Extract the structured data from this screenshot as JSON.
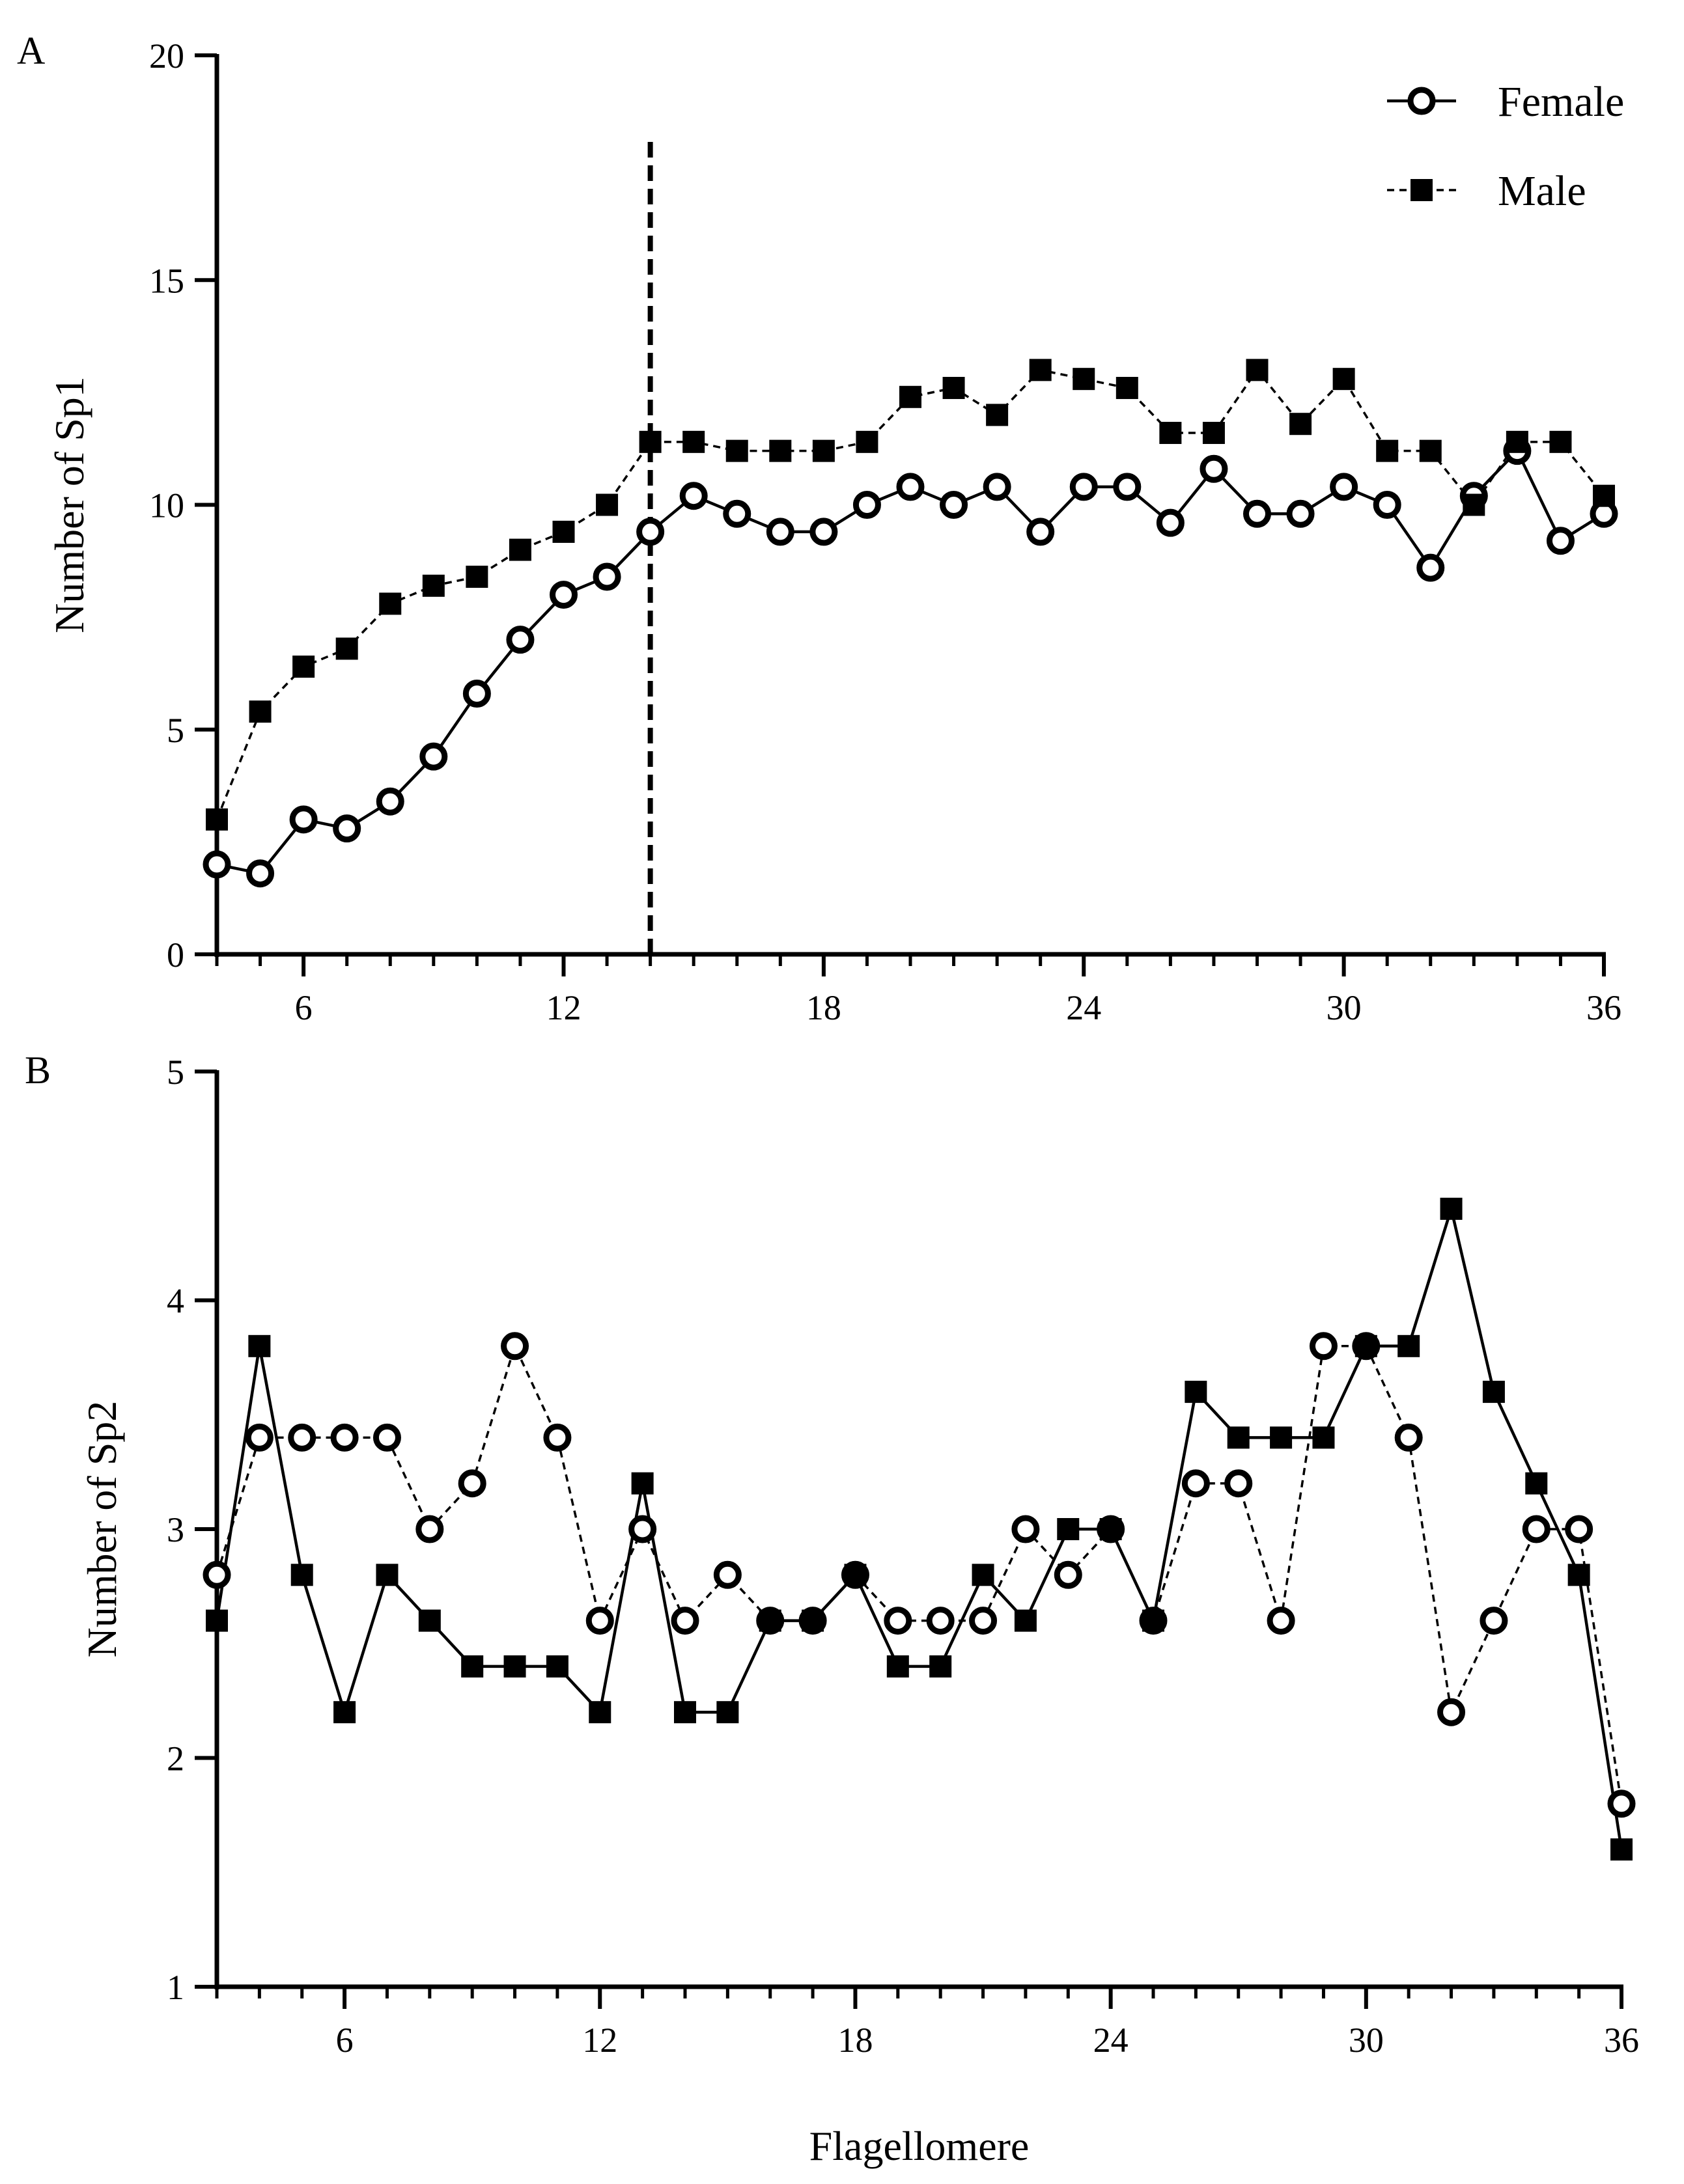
{
  "chart_data": [
    {
      "panel": "A",
      "type": "line",
      "xlabel": "",
      "ylabel": "Number of Sp1",
      "xlim": [
        4,
        36
      ],
      "ylim": [
        0,
        20
      ],
      "xticks": [
        6,
        12,
        18,
        24,
        30,
        36
      ],
      "yticks": [
        0,
        5,
        10,
        15,
        20
      ],
      "xtick_labels": [
        "6",
        "12",
        "18",
        "24",
        "30",
        "36"
      ],
      "ytick_labels": [
        "0",
        "5",
        "10",
        "15",
        "20"
      ],
      "reference_line": {
        "orientation": "vertical",
        "x": 14,
        "style": "dashed",
        "from_y": 0,
        "to_y": 18.2
      },
      "legend": {
        "position": "top-right",
        "entries": [
          "Female",
          "Male"
        ]
      },
      "series": [
        {
          "name": "Female",
          "marker": "open-circle",
          "line_style": "solid",
          "x": [
            4,
            5,
            6,
            7,
            8,
            9,
            10,
            11,
            12,
            13,
            14,
            15,
            16,
            17,
            18,
            19,
            20,
            21,
            22,
            23,
            24,
            25,
            26,
            27,
            28,
            29,
            30,
            31,
            32,
            33,
            34,
            35,
            36
          ],
          "values": [
            2.0,
            1.8,
            3.0,
            2.8,
            3.4,
            4.4,
            5.8,
            7.0,
            8.0,
            8.4,
            9.4,
            10.2,
            9.8,
            9.4,
            9.4,
            10.0,
            10.4,
            10.0,
            10.4,
            9.4,
            10.4,
            10.4,
            9.6,
            10.8,
            9.8,
            9.8,
            10.4,
            10.0,
            8.6,
            10.2,
            11.2,
            9.2,
            9.8
          ]
        },
        {
          "name": "Male",
          "marker": "filled-square",
          "line_style": "dashed",
          "x": [
            4,
            5,
            6,
            7,
            8,
            9,
            10,
            11,
            12,
            13,
            14,
            15,
            16,
            17,
            18,
            19,
            20,
            21,
            22,
            23,
            24,
            25,
            26,
            27,
            28,
            29,
            30,
            31,
            32,
            33,
            34,
            35,
            36
          ],
          "values": [
            3.0,
            5.4,
            6.4,
            6.8,
            7.8,
            8.2,
            8.4,
            9.0,
            9.4,
            10.0,
            11.4,
            11.4,
            11.2,
            11.2,
            11.2,
            11.4,
            12.4,
            12.6,
            12.0,
            13.0,
            12.8,
            12.6,
            11.6,
            11.6,
            13.0,
            11.8,
            12.8,
            11.2,
            11.2,
            10.0,
            11.4,
            11.4,
            10.2
          ]
        }
      ]
    },
    {
      "panel": "B",
      "type": "line",
      "xlabel": "Flagellomere",
      "ylabel": "Number of Sp2",
      "xlim": [
        3,
        36
      ],
      "ylim": [
        1,
        5
      ],
      "xticks": [
        6,
        12,
        18,
        24,
        30,
        36
      ],
      "yticks": [
        1,
        2,
        3,
        4,
        5
      ],
      "xtick_labels": [
        "6",
        "12",
        "18",
        "24",
        "30",
        "36"
      ],
      "ytick_labels": [
        "1",
        "2",
        "3",
        "4",
        "5"
      ],
      "series": [
        {
          "name": "Female",
          "marker": "open-circle",
          "line_style": "dashed",
          "x": [
            3,
            4,
            5,
            6,
            7,
            8,
            9,
            10,
            11,
            12,
            13,
            14,
            15,
            16,
            17,
            18,
            19,
            20,
            21,
            22,
            23,
            24,
            25,
            26,
            27,
            28,
            29,
            30,
            31,
            32,
            33,
            34,
            35,
            36
          ],
          "values": [
            2.8,
            3.4,
            3.4,
            3.4,
            3.4,
            3.0,
            3.2,
            3.8,
            3.4,
            2.6,
            3.0,
            2.6,
            2.8,
            2.6,
            2.6,
            2.8,
            2.6,
            2.6,
            2.6,
            3.0,
            2.8,
            3.0,
            2.6,
            3.2,
            3.2,
            2.6,
            3.8,
            3.8,
            3.4,
            2.2,
            2.6,
            3.0,
            3.0,
            1.8
          ]
        },
        {
          "name": "Male",
          "marker": "filled-square",
          "line_style": "solid",
          "x": [
            3,
            4,
            5,
            6,
            7,
            8,
            9,
            10,
            11,
            12,
            13,
            14,
            15,
            16,
            17,
            18,
            19,
            20,
            21,
            22,
            23,
            24,
            25,
            26,
            27,
            28,
            29,
            30,
            31,
            32,
            33,
            34,
            35,
            36
          ],
          "values": [
            2.6,
            3.8,
            2.8,
            2.2,
            2.8,
            2.6,
            2.4,
            2.4,
            2.4,
            2.2,
            3.2,
            2.2,
            2.2,
            2.6,
            2.6,
            2.8,
            2.4,
            2.4,
            2.8,
            2.6,
            3.0,
            3.0,
            2.6,
            3.6,
            3.4,
            3.4,
            3.4,
            3.8,
            3.8,
            4.4,
            3.6,
            3.2,
            2.8,
            1.6
          ]
        }
      ]
    }
  ]
}
